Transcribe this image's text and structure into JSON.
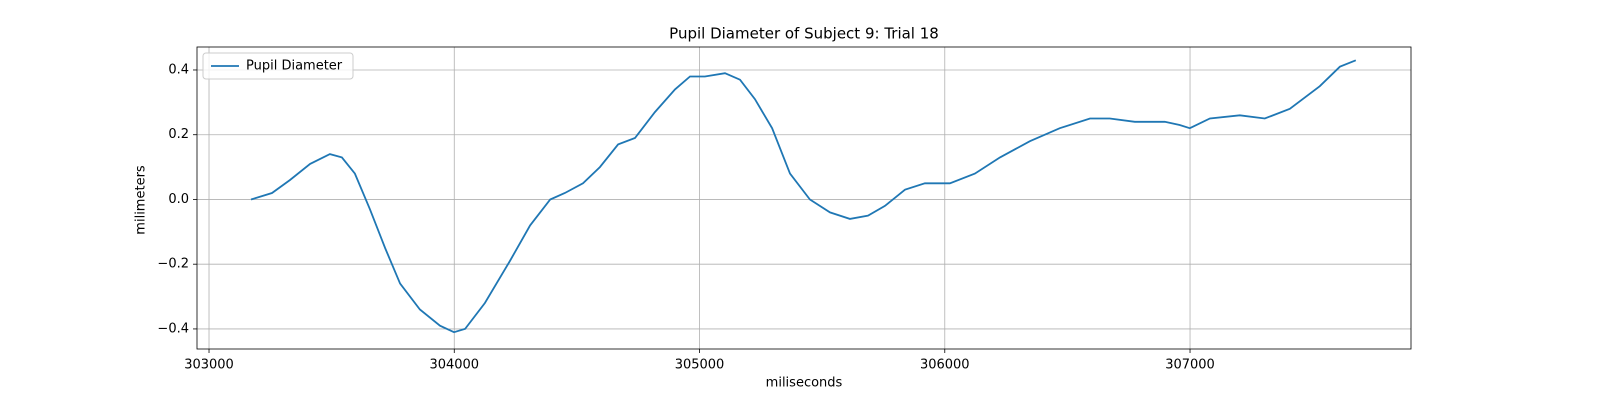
{
  "chart_data": {
    "type": "line",
    "title": "Pupil Diameter of Subject 9: Trial 18",
    "x_label": "miliseconds",
    "y_label": "milimeters",
    "x": [
      303171,
      303257,
      303330,
      303412,
      303493,
      303542,
      303595,
      303656,
      303718,
      303779,
      303860,
      303942,
      303999,
      304044,
      304125,
      304227,
      304309,
      304391,
      304451,
      304525,
      304594,
      304668,
      304737,
      304818,
      304900,
      304961,
      305022,
      305104,
      305165,
      305226,
      305296,
      305369,
      305450,
      305532,
      305613,
      305687,
      305756,
      305838,
      305919,
      306021,
      306123,
      306225,
      306347,
      306469,
      306592,
      306673,
      306775,
      306897,
      306958,
      306999,
      307081,
      307203,
      307305,
      307407,
      307529,
      307611,
      307676
    ],
    "series": [
      {
        "name": "Pupil Diameter",
        "color": "#1f77b4",
        "values": [
          0.0,
          0.02,
          0.06,
          0.11,
          0.14,
          0.13,
          0.08,
          -0.03,
          -0.15,
          -0.26,
          -0.34,
          -0.39,
          -0.41,
          -0.4,
          -0.32,
          -0.19,
          -0.08,
          0.0,
          0.02,
          0.05,
          0.1,
          0.17,
          0.19,
          0.27,
          0.34,
          0.38,
          0.38,
          0.39,
          0.37,
          0.31,
          0.22,
          0.08,
          0.0,
          -0.04,
          -0.06,
          -0.05,
          -0.02,
          0.03,
          0.05,
          0.05,
          0.08,
          0.13,
          0.18,
          0.22,
          0.25,
          0.25,
          0.24,
          0.24,
          0.23,
          0.22,
          0.25,
          0.26,
          0.25,
          0.28,
          0.35,
          0.41,
          0.43
        ]
      }
    ],
    "xlim": [
      302951,
      307901
    ],
    "ylim": [
      -0.462,
      0.471
    ],
    "xticks": [
      303000,
      304000,
      305000,
      306000,
      307000
    ],
    "yticks": [
      {
        "value": -0.4,
        "label": "−0.4"
      },
      {
        "value": -0.2,
        "label": "−0.2"
      },
      {
        "value": 0,
        "label": "0.0"
      },
      0.2,
      0.4
    ],
    "grid": true,
    "legend": "upper left"
  }
}
